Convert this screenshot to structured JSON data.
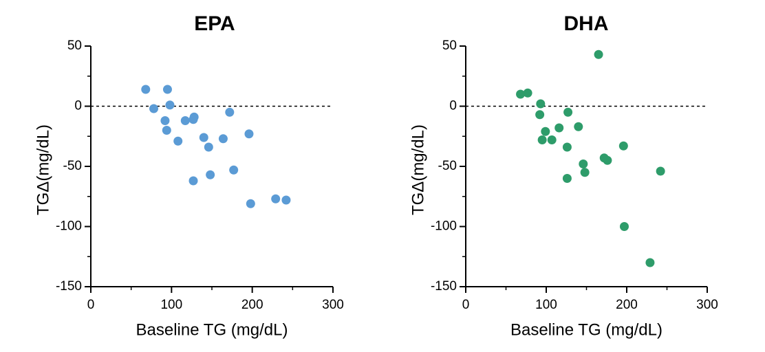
{
  "chart_data": [
    {
      "type": "scatter",
      "title": "EPA",
      "xlabel": "Baseline TG (mg/dL)",
      "ylabel": "TGΔ(mg/dL)",
      "xlim": [
        0,
        300
      ],
      "ylim": [
        -150,
        50
      ],
      "x_ticks": [
        "0",
        "100",
        "200",
        "300"
      ],
      "y_ticks": [
        "50",
        "0",
        "-50",
        "-100",
        "-150"
      ],
      "reference_line_y": 0,
      "color": "#5b9bd5",
      "points": [
        {
          "x": 68,
          "y": 14
        },
        {
          "x": 95,
          "y": 14
        },
        {
          "x": 78,
          "y": -2
        },
        {
          "x": 98,
          "y": 1
        },
        {
          "x": 92,
          "y": -12
        },
        {
          "x": 94,
          "y": -20
        },
        {
          "x": 108,
          "y": -29
        },
        {
          "x": 117,
          "y": -12
        },
        {
          "x": 127,
          "y": -11
        },
        {
          "x": 128,
          "y": -9
        },
        {
          "x": 140,
          "y": -26
        },
        {
          "x": 146,
          "y": -34
        },
        {
          "x": 164,
          "y": -27
        },
        {
          "x": 172,
          "y": -5
        },
        {
          "x": 196,
          "y": -23
        },
        {
          "x": 177,
          "y": -53
        },
        {
          "x": 127,
          "y": -62
        },
        {
          "x": 148,
          "y": -57
        },
        {
          "x": 198,
          "y": -81
        },
        {
          "x": 229,
          "y": -77
        },
        {
          "x": 242,
          "y": -78
        }
      ]
    },
    {
      "type": "scatter",
      "title": "DHA",
      "xlabel": "Baseline TG (mg/dL)",
      "ylabel": "TGΔ(mg/dL)",
      "xlim": [
        0,
        300
      ],
      "ylim": [
        -150,
        50
      ],
      "x_ticks": [
        "0",
        "100",
        "200",
        "300"
      ],
      "y_ticks": [
        "50",
        "0",
        "-50",
        "-100",
        "-150"
      ],
      "reference_line_y": 0,
      "color": "#2e9c6a",
      "points": [
        {
          "x": 165,
          "y": 43
        },
        {
          "x": 68,
          "y": 10
        },
        {
          "x": 77,
          "y": 11
        },
        {
          "x": 93,
          "y": 2
        },
        {
          "x": 92,
          "y": -7
        },
        {
          "x": 127,
          "y": -5
        },
        {
          "x": 99,
          "y": -21
        },
        {
          "x": 116,
          "y": -18
        },
        {
          "x": 140,
          "y": -17
        },
        {
          "x": 95,
          "y": -28
        },
        {
          "x": 107,
          "y": -28
        },
        {
          "x": 126,
          "y": -34
        },
        {
          "x": 196,
          "y": -33
        },
        {
          "x": 172,
          "y": -43
        },
        {
          "x": 176,
          "y": -45
        },
        {
          "x": 146,
          "y": -48
        },
        {
          "x": 148,
          "y": -55
        },
        {
          "x": 126,
          "y": -60
        },
        {
          "x": 242,
          "y": -54
        },
        {
          "x": 197,
          "y": -100
        },
        {
          "x": 229,
          "y": -130
        }
      ]
    }
  ]
}
